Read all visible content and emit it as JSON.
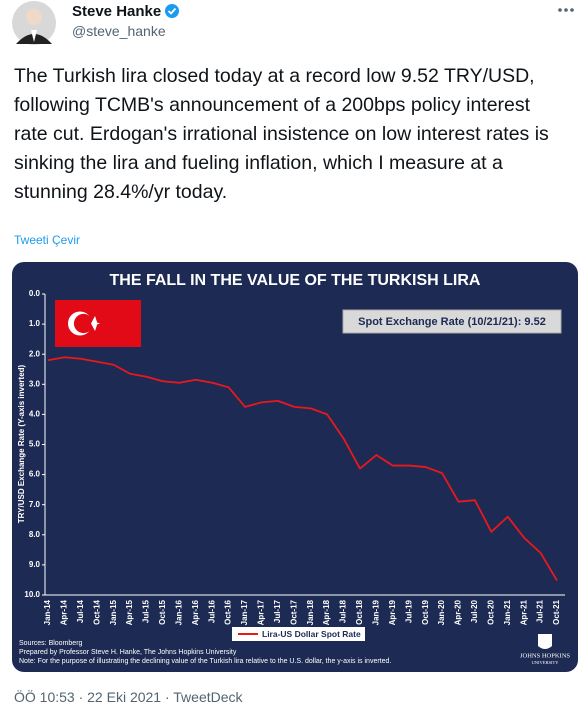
{
  "user": {
    "name": "Steve Hanke",
    "handle": "@steve_hanke"
  },
  "tweet": {
    "text": "The Turkish lira closed today at a record low 9.52 TRY/USD, following TCMB's announcement of a 200bps policy interest rate cut. Erdogan's irrational insistence on low interest rates is sinking the lira and fueling inflation, which I measure at a stunning 28.4%/yr today.",
    "translate": "Tweeti Çevir",
    "meta": "ÖÖ 10:53 · 22 Eki 2021 · TweetDeck"
  },
  "chart_data": {
    "type": "line",
    "title": "THE FALL IN THE VALUE OF THE TURKISH LIRA",
    "y_label": "TRY/USD Exchange Rate (Y-axis inverted)",
    "annotation": "Spot Exchange Rate (10/21/21): 9.52",
    "categories": [
      "Jan-14",
      "Apr-14",
      "Jul-14",
      "Oct-14",
      "Jan-15",
      "Apr-15",
      "Jul-15",
      "Oct-15",
      "Jan-16",
      "Apr-16",
      "Jul-16",
      "Oct-16",
      "Jan-17",
      "Apr-17",
      "Jul-17",
      "Oct-17",
      "Jan-18",
      "Apr-18",
      "Jul-18",
      "Oct-18",
      "Jan-19",
      "Apr-19",
      "Jul-19",
      "Oct-19",
      "Jan-20",
      "Apr-20",
      "Jul-20",
      "Oct-20",
      "Jan-21",
      "Apr-21",
      "Jul-21",
      "Oct-21"
    ],
    "series": [
      {
        "name": "Lira-US Dollar Spot Rate",
        "color": "#e8191c",
        "values": [
          2.2,
          2.1,
          2.15,
          2.25,
          2.35,
          2.65,
          2.75,
          2.9,
          2.95,
          2.85,
          2.95,
          3.1,
          3.75,
          3.6,
          3.55,
          3.75,
          3.8,
          4.0,
          4.8,
          5.8,
          5.35,
          5.7,
          5.7,
          5.75,
          5.95,
          6.9,
          6.85,
          7.9,
          7.4,
          8.1,
          8.6,
          9.52
        ]
      }
    ],
    "ylim": [
      0,
      10
    ],
    "y_inverted": true,
    "yticks": [
      {
        "value": 0,
        "label": "0.0"
      },
      {
        "value": 1,
        "label": "1.0"
      },
      {
        "value": 2,
        "label": "2.0"
      },
      {
        "value": 3,
        "label": "3.0"
      },
      {
        "value": 4,
        "label": "4.0"
      },
      {
        "value": 5,
        "label": "5.0"
      },
      {
        "value": 6,
        "label": "6.0"
      },
      {
        "value": 7,
        "label": "7.0"
      },
      {
        "value": 8,
        "label": "8.0"
      },
      {
        "value": 9,
        "label": "9.0"
      },
      {
        "value": 10,
        "label": "10.0"
      }
    ],
    "notes": [
      "Sources: Bloomberg",
      "Prepared by Professor Steve H. Hanke, The Johns Hopkins University",
      "Note: For the purpose of illustrating the declining value of the Turkish lira relative to the U.S. dollar, the y-axis is inverted."
    ],
    "logo": [
      "JOHNS HOPKINS",
      "UNIVERSITY"
    ]
  }
}
